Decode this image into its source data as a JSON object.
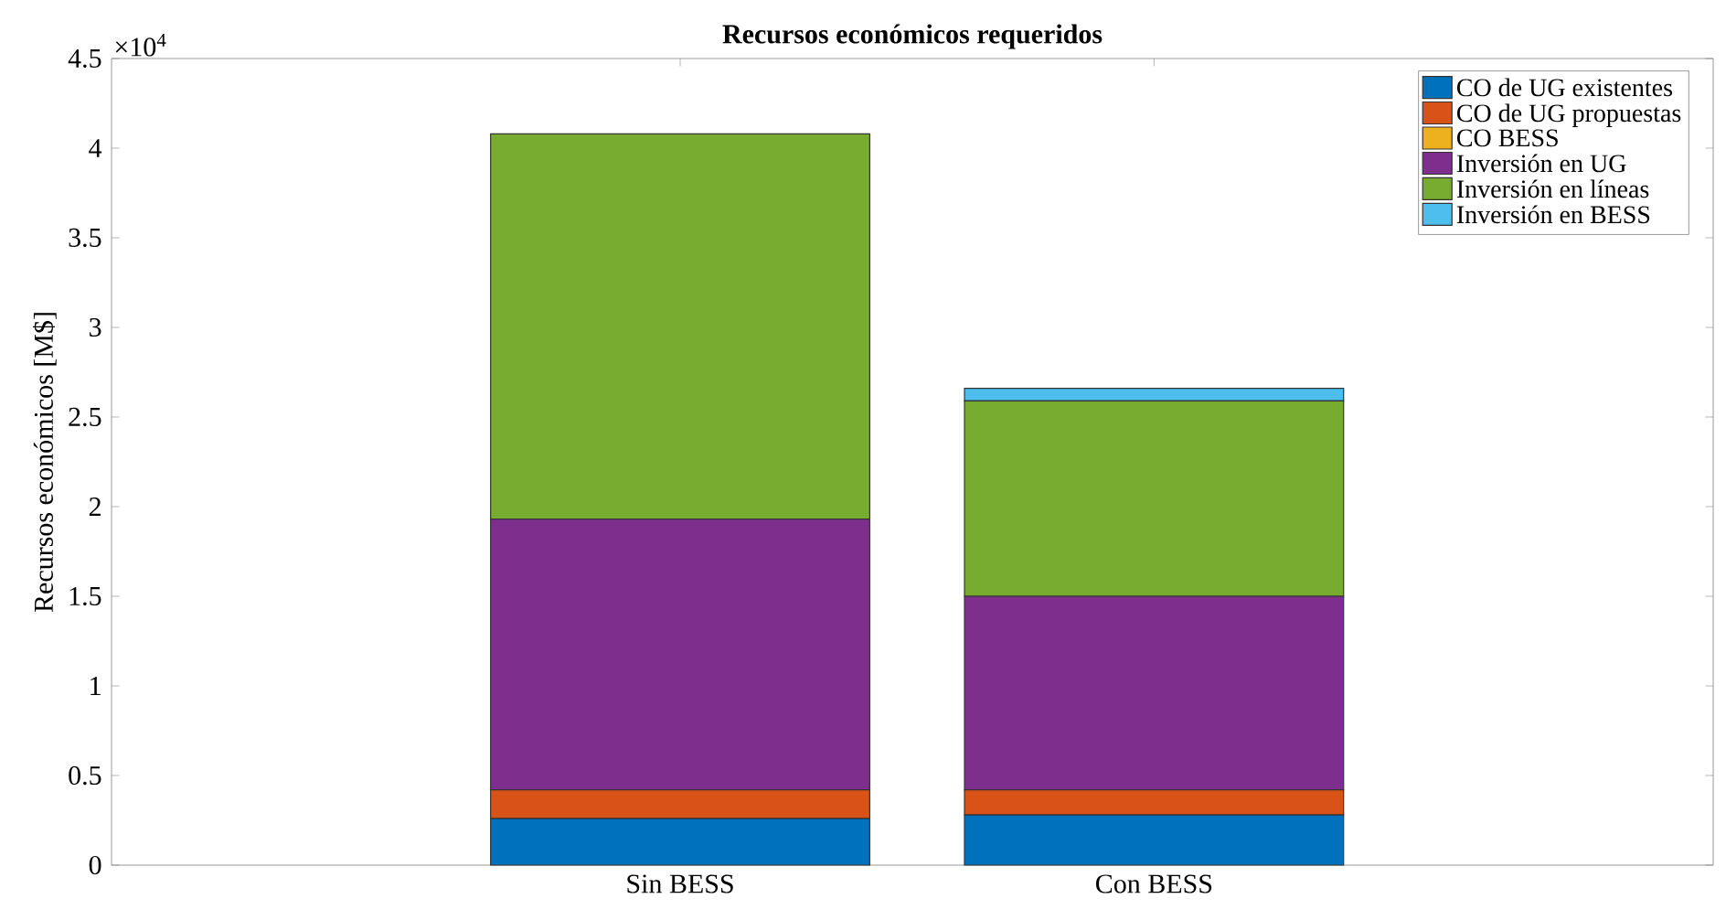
{
  "chart_data": {
    "type": "bar",
    "stacked": true,
    "title": "Recursos económicos requeridos",
    "ylabel": "Recursos económicos [M$]",
    "categories": [
      "Sin BESS",
      "Con BESS"
    ],
    "series": [
      {
        "name": "CO de UG existentes",
        "color": "#0072bd",
        "values": [
          0.26,
          0.28
        ]
      },
      {
        "name": "CO de UG propuestas",
        "color": "#d95319",
        "values": [
          0.16,
          0.14
        ]
      },
      {
        "name": "CO BESS",
        "color": "#edb120",
        "values": [
          0,
          0
        ]
      },
      {
        "name": "Inversión en UG",
        "color": "#7e2f8e",
        "values": [
          1.51,
          1.08
        ]
      },
      {
        "name": "Inversión en líneas",
        "color": "#77ac30",
        "values": [
          2.15,
          1.09
        ]
      },
      {
        "name": "Inversión en BESS",
        "color": "#4dbeee",
        "values": [
          0,
          0.07
        ]
      }
    ],
    "ylim": [
      0,
      4.5
    ],
    "yticks": [
      0,
      0.5,
      1,
      1.5,
      2,
      2.5,
      3,
      3.5,
      4,
      4.5
    ],
    "annotations": [
      "×10$^{4}$"
    ],
    "legend": "top right",
    "grid": false
  }
}
